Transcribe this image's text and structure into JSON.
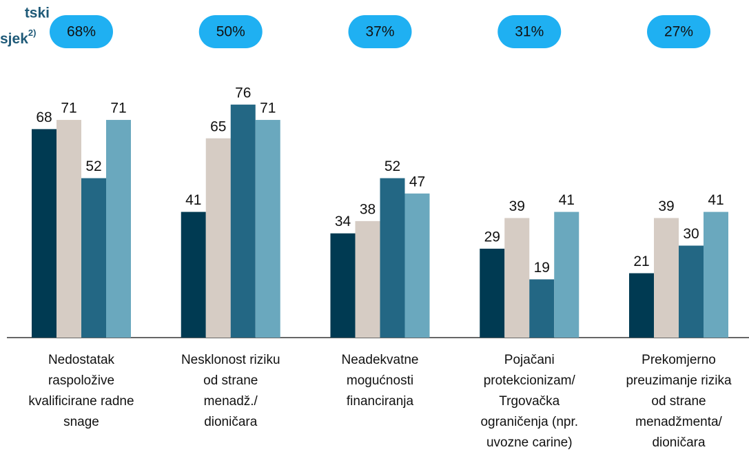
{
  "chart_data": {
    "type": "bar",
    "title_lines": [
      "tski",
      "sjek"
    ],
    "title_note": "2)",
    "categories": [
      "Nedostatak\nraspoložive\nkvalificirane radne\nsnage",
      "Nesklonost riziku\nod strane\nmenadž./\ndioničara",
      "Neadekvatne\nmogućnosti\nfinanciranja",
      "Pojačani\nprotekcionizam/\nTrgovačka\nograničenja (npr.\nuvozne carine)",
      "Prekomjerno\npreuzimanje rizika\nod strane\nmenadžmenta/\ndioničara"
    ],
    "group_totals": {
      "values": [
        68,
        50,
        37,
        31,
        27
      ],
      "value_labels": [
        "68%",
        "50%",
        "37%",
        "31%",
        "27%"
      ],
      "color": "#1fb0f2"
    },
    "series": [
      {
        "color": "#003a52",
        "values": [
          68,
          41,
          34,
          29,
          21
        ]
      },
      {
        "color": "#d6ccc4",
        "values": [
          71,
          65,
          38,
          39,
          39
        ]
      },
      {
        "color": "#236784",
        "values": [
          52,
          76,
          52,
          19,
          30
        ]
      },
      {
        "color": "#6aa8be",
        "values": [
          71,
          71,
          47,
          41,
          41
        ]
      }
    ],
    "ylim": [
      0,
      100
    ]
  }
}
